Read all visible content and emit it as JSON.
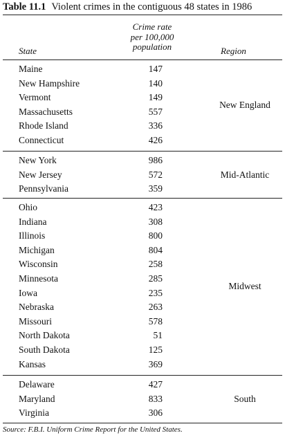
{
  "caption": {
    "label": "Table 11.1",
    "title": "Violent crimes in the contiguous 48 states in 1986"
  },
  "headers": {
    "state": "State",
    "rate_line1": "Crime rate",
    "rate_line2": "per 100,000",
    "rate_line3": "population",
    "region": "Region"
  },
  "groups": [
    {
      "region": "New England",
      "rows": [
        {
          "state": "Maine",
          "rate": "147"
        },
        {
          "state": "New Hampshire",
          "rate": "140"
        },
        {
          "state": "Vermont",
          "rate": "149"
        },
        {
          "state": "Massachusetts",
          "rate": "557"
        },
        {
          "state": "Rhode Island",
          "rate": "336"
        },
        {
          "state": "Connecticut",
          "rate": "426"
        }
      ]
    },
    {
      "region": "Mid-Atlantic",
      "rows": [
        {
          "state": "New York",
          "rate": "986"
        },
        {
          "state": "New Jersey",
          "rate": "572"
        },
        {
          "state": "Pennsylvania",
          "rate": "359"
        }
      ]
    },
    {
      "region": "Midwest",
      "rows": [
        {
          "state": "Ohio",
          "rate": "423"
        },
        {
          "state": "Indiana",
          "rate": "308"
        },
        {
          "state": "Illinois",
          "rate": "800"
        },
        {
          "state": "Michigan",
          "rate": "804"
        },
        {
          "state": "Wisconsin",
          "rate": "258"
        },
        {
          "state": "Minnesota",
          "rate": "285"
        },
        {
          "state": "Iowa",
          "rate": "235"
        },
        {
          "state": "Nebraska",
          "rate": "263"
        },
        {
          "state": "Missouri",
          "rate": "578"
        },
        {
          "state": "North Dakota",
          "rate": "51"
        },
        {
          "state": "South Dakota",
          "rate": "125"
        },
        {
          "state": "Kansas",
          "rate": "369"
        }
      ]
    },
    {
      "region": "South",
      "rows": [
        {
          "state": "Delaware",
          "rate": "427"
        },
        {
          "state": "Maryland",
          "rate": "833"
        },
        {
          "state": "Virginia",
          "rate": "306"
        }
      ]
    }
  ],
  "source": "Source: F.B.I. Uniform Crime Report for the United States."
}
